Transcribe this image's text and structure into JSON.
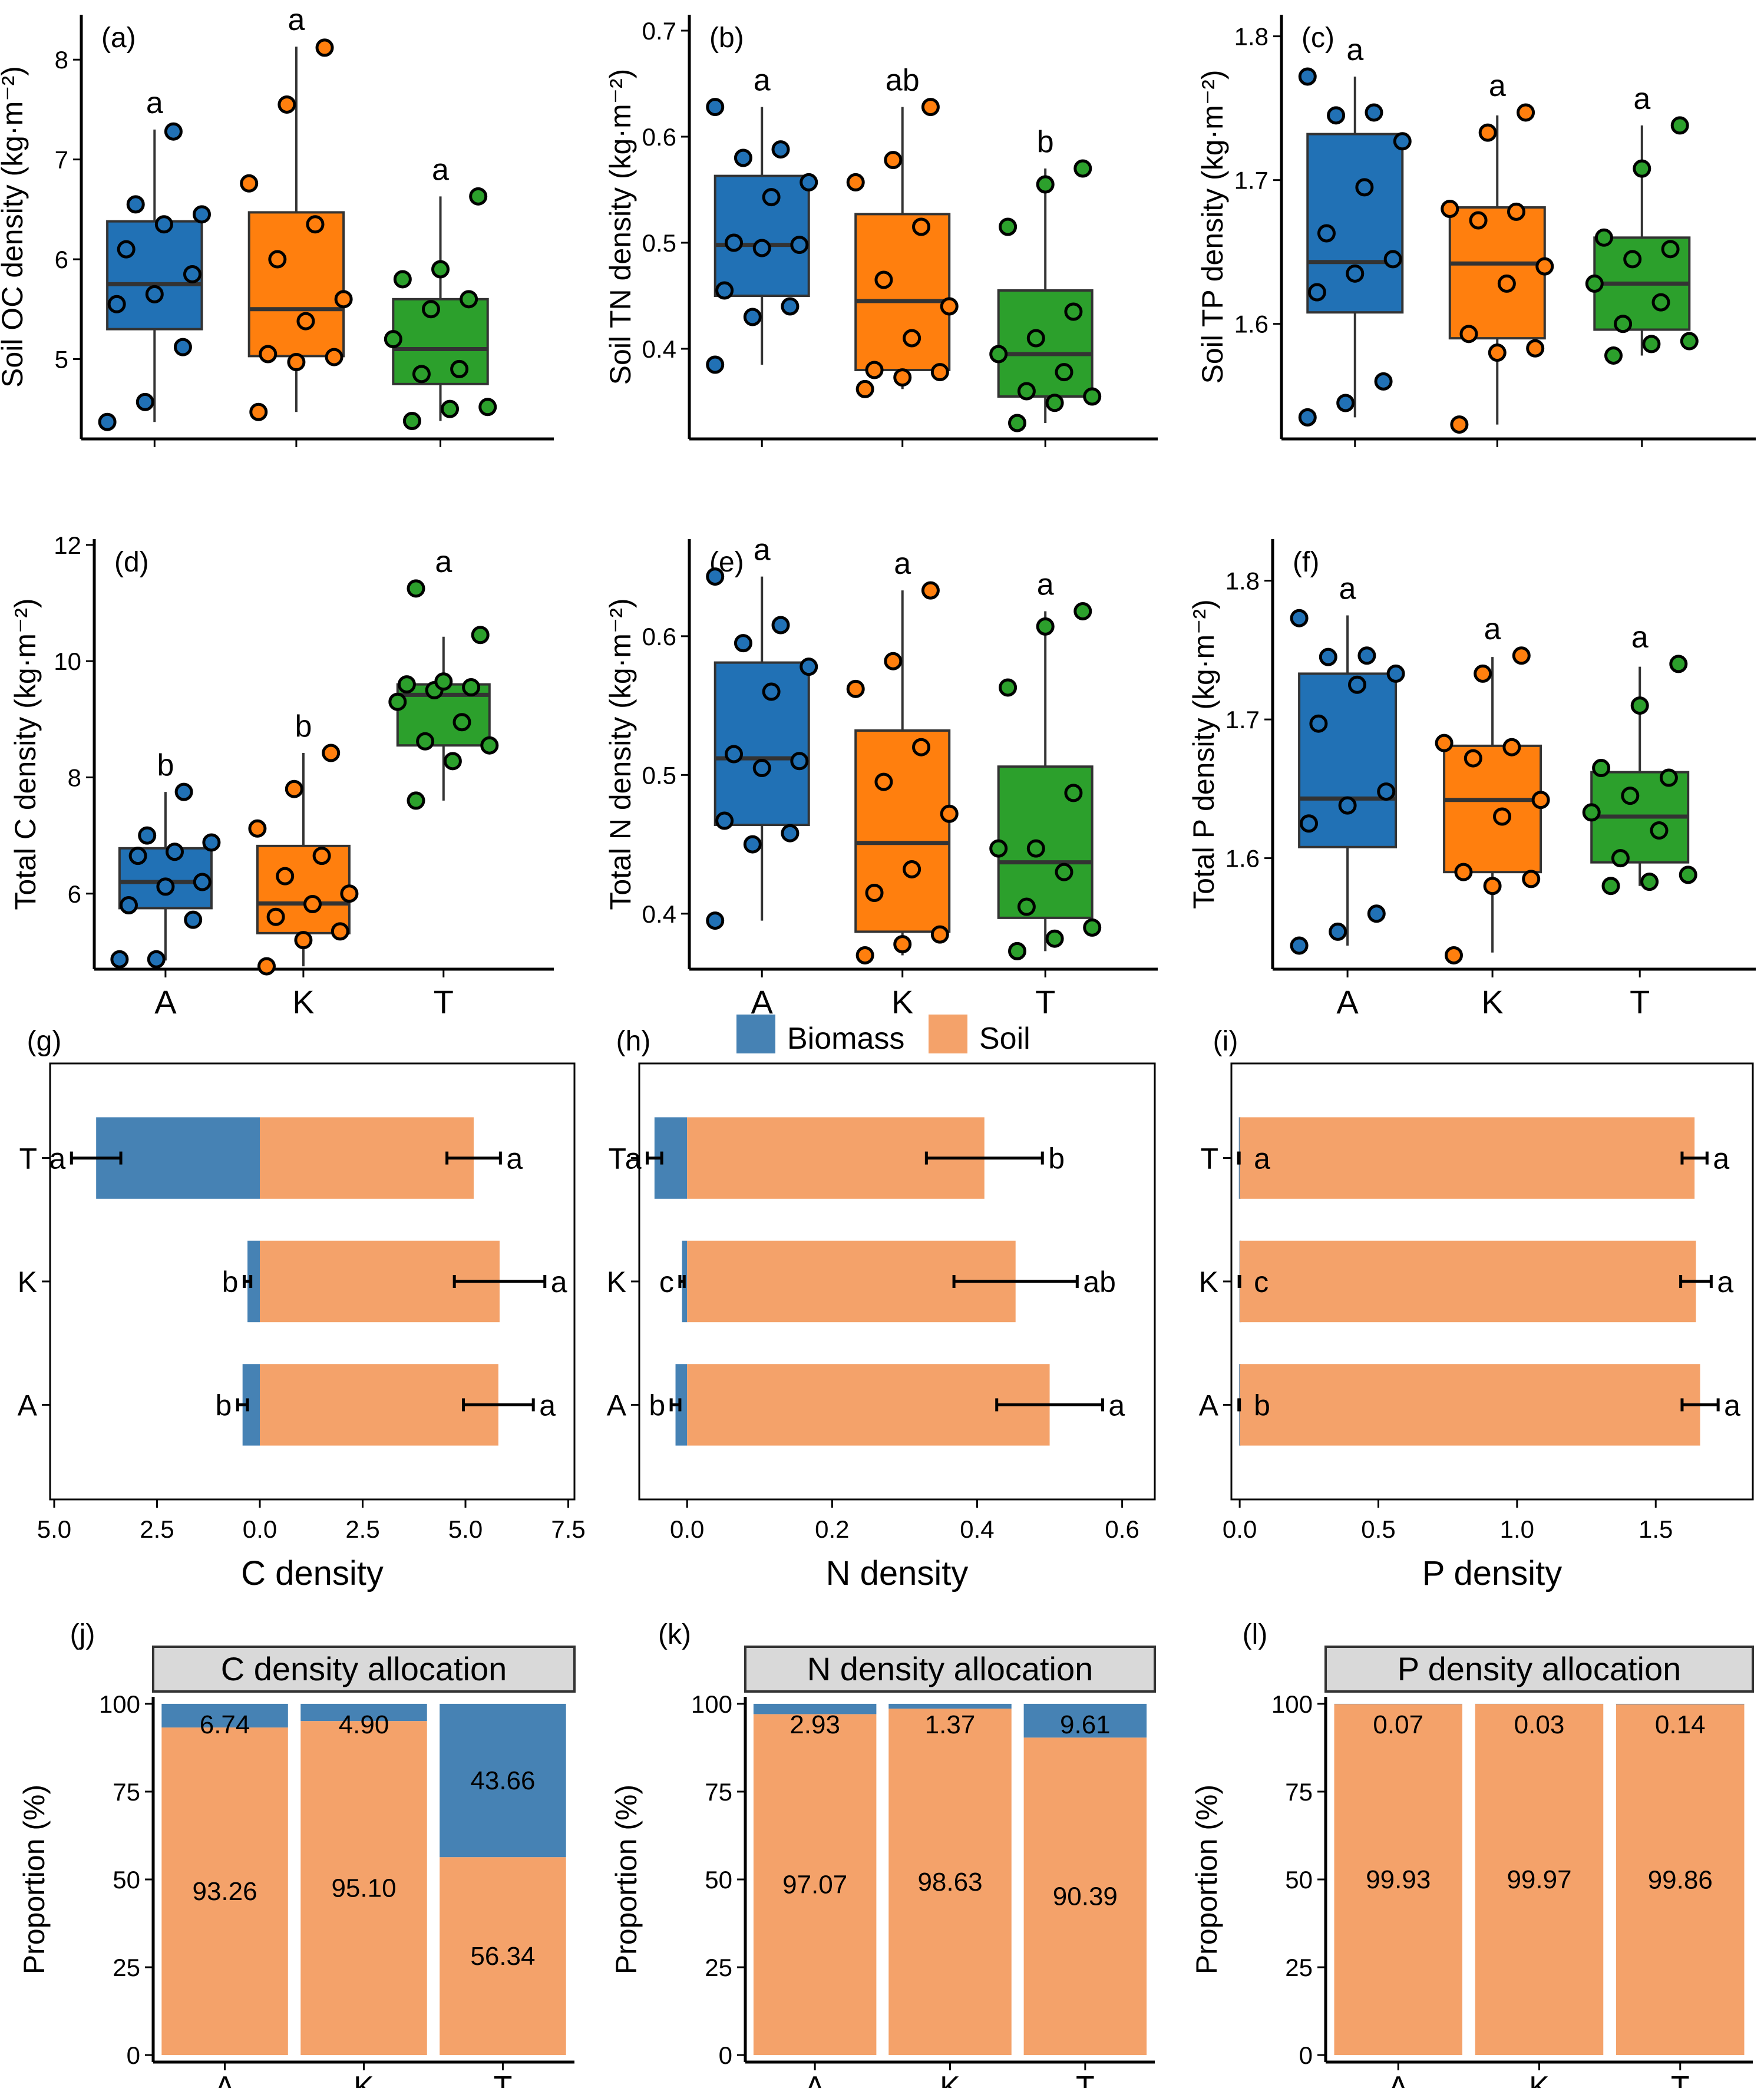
{
  "colors": {
    "A": "#2171B5",
    "K": "#FF7F0E",
    "T": "#2CA02C",
    "biomass": "#4682B4",
    "soil": "#F4A26A",
    "strip": "#D9D9D9"
  },
  "legend": {
    "biomass": "Biomass",
    "soil": "Soil"
  },
  "chart_data": [
    {
      "type": "box",
      "panel": "(a)",
      "ylabel": "Soil OC density (kg·m⁻²)",
      "ylim": [
        4.2,
        8.45
      ],
      "yticks": [
        5,
        6,
        7,
        8
      ],
      "xticklabels": [],
      "boxes": [
        {
          "group": "A",
          "q1": 5.3,
          "median": 5.75,
          "q3": 6.38,
          "low": 4.37,
          "high": 7.3,
          "letter": "a",
          "points": [
            4.37,
            4.57,
            5.12,
            5.55,
            5.65,
            5.85,
            6.1,
            6.35,
            6.45,
            6.55,
            7.28
          ]
        },
        {
          "group": "K",
          "q1": 5.03,
          "median": 5.5,
          "q3": 6.47,
          "low": 4.47,
          "high": 8.13,
          "letter": "a",
          "points": [
            4.47,
            4.97,
            5.02,
            5.05,
            5.38,
            5.6,
            6.0,
            6.35,
            6.76,
            7.55,
            8.12
          ]
        },
        {
          "group": "T",
          "q1": 4.75,
          "median": 5.1,
          "q3": 5.6,
          "low": 4.38,
          "high": 6.63,
          "letter": "a",
          "points": [
            4.38,
            4.5,
            4.52,
            4.85,
            4.9,
            5.2,
            5.5,
            5.6,
            5.8,
            5.9,
            6.63
          ]
        }
      ]
    },
    {
      "type": "box",
      "panel": "(b)",
      "ylabel": "Soil TN density (kg·m⁻²)",
      "ylim": [
        0.315,
        0.715
      ],
      "yticks": [
        0.4,
        0.5,
        0.6,
        0.7
      ],
      "xticklabels": [],
      "boxes": [
        {
          "group": "A",
          "q1": 0.45,
          "median": 0.498,
          "q3": 0.563,
          "low": 0.385,
          "high": 0.628,
          "letter": "a",
          "points": [
            0.385,
            0.43,
            0.44,
            0.455,
            0.495,
            0.498,
            0.5,
            0.543,
            0.557,
            0.58,
            0.588,
            0.628
          ]
        },
        {
          "group": "K",
          "q1": 0.38,
          "median": 0.445,
          "q3": 0.527,
          "low": 0.362,
          "high": 0.628,
          "letter": "ab",
          "points": [
            0.362,
            0.373,
            0.378,
            0.38,
            0.41,
            0.44,
            0.465,
            0.515,
            0.557,
            0.578,
            0.628
          ]
        },
        {
          "group": "T",
          "q1": 0.355,
          "median": 0.395,
          "q3": 0.455,
          "low": 0.33,
          "high": 0.57,
          "letter": "b",
          "points": [
            0.33,
            0.349,
            0.355,
            0.36,
            0.378,
            0.395,
            0.41,
            0.435,
            0.515,
            0.555,
            0.57
          ]
        }
      ]
    },
    {
      "type": "box",
      "panel": "(c)",
      "ylabel": "Soil TP density (kg·m⁻²)",
      "ylim": [
        1.52,
        1.815
      ],
      "yticks": [
        1.6,
        1.7,
        1.8
      ],
      "xticklabels": [],
      "boxes": [
        {
          "group": "A",
          "q1": 1.608,
          "median": 1.643,
          "q3": 1.732,
          "low": 1.535,
          "high": 1.772,
          "letter": "a",
          "points": [
            1.535,
            1.545,
            1.56,
            1.622,
            1.635,
            1.645,
            1.663,
            1.695,
            1.727,
            1.745,
            1.747,
            1.772
          ]
        },
        {
          "group": "K",
          "q1": 1.59,
          "median": 1.642,
          "q3": 1.681,
          "low": 1.53,
          "high": 1.745,
          "letter": "a",
          "points": [
            1.53,
            1.58,
            1.583,
            1.593,
            1.628,
            1.64,
            1.672,
            1.678,
            1.68,
            1.733,
            1.747
          ]
        },
        {
          "group": "T",
          "q1": 1.596,
          "median": 1.628,
          "q3": 1.66,
          "low": 1.578,
          "high": 1.738,
          "letter": "a",
          "points": [
            1.578,
            1.586,
            1.588,
            1.6,
            1.615,
            1.628,
            1.645,
            1.652,
            1.66,
            1.708,
            1.738
          ]
        }
      ]
    },
    {
      "type": "box",
      "panel": "(d)",
      "ylabel": "Total C density (kg·m⁻²)",
      "ylim": [
        4.7,
        12.1
      ],
      "yticks": [
        6,
        8,
        10,
        12
      ],
      "xticklabels": [
        "A",
        "K",
        "T"
      ],
      "boxes": [
        {
          "group": "A",
          "q1": 5.75,
          "median": 6.2,
          "q3": 6.78,
          "low": 4.85,
          "high": 7.75,
          "letter": "b",
          "points": [
            4.87,
            4.87,
            5.55,
            5.8,
            6.12,
            6.2,
            6.65,
            6.72,
            6.88,
            7.0,
            7.75
          ]
        },
        {
          "group": "K",
          "q1": 5.32,
          "median": 5.83,
          "q3": 6.82,
          "low": 4.75,
          "high": 8.42,
          "letter": "b",
          "points": [
            4.75,
            5.2,
            5.35,
            5.6,
            5.82,
            6.0,
            6.3,
            6.65,
            7.12,
            7.8,
            8.42
          ]
        },
        {
          "group": "T",
          "q1": 8.55,
          "median": 9.42,
          "q3": 9.6,
          "low": 7.6,
          "high": 10.42,
          "letter": "a",
          "points": [
            7.6,
            8.28,
            8.55,
            8.62,
            8.95,
            9.3,
            9.5,
            9.55,
            9.6,
            9.65,
            10.45,
            11.25
          ]
        }
      ]
    },
    {
      "type": "box",
      "panel": "(e)",
      "ylabel": "Total N density (kg·m⁻²)",
      "ylim": [
        0.36,
        0.67
      ],
      "yticks": [
        0.4,
        0.5,
        0.6
      ],
      "xticklabels": [
        "A",
        "K",
        "T"
      ],
      "boxes": [
        {
          "group": "A",
          "q1": 0.464,
          "median": 0.512,
          "q3": 0.581,
          "low": 0.395,
          "high": 0.643,
          "letter": "a",
          "points": [
            0.395,
            0.45,
            0.458,
            0.467,
            0.505,
            0.51,
            0.515,
            0.56,
            0.578,
            0.595,
            0.608,
            0.643
          ]
        },
        {
          "group": "K",
          "q1": 0.387,
          "median": 0.451,
          "q3": 0.532,
          "low": 0.37,
          "high": 0.633,
          "letter": "a",
          "points": [
            0.37,
            0.378,
            0.385,
            0.415,
            0.432,
            0.472,
            0.495,
            0.52,
            0.562,
            0.582,
            0.633
          ]
        },
        {
          "group": "T",
          "q1": 0.397,
          "median": 0.437,
          "q3": 0.506,
          "low": 0.373,
          "high": 0.618,
          "letter": "a",
          "points": [
            0.373,
            0.382,
            0.39,
            0.405,
            0.43,
            0.447,
            0.447,
            0.487,
            0.563,
            0.607,
            0.618
          ]
        }
      ]
    },
    {
      "type": "box",
      "panel": "(f)",
      "ylabel": "Total P density (kg·m⁻²)",
      "ylim": [
        1.52,
        1.83
      ],
      "yticks": [
        1.6,
        1.7,
        1.8
      ],
      "xticklabels": [
        "A",
        "K",
        "T"
      ],
      "boxes": [
        {
          "group": "A",
          "q1": 1.608,
          "median": 1.643,
          "q3": 1.733,
          "low": 1.537,
          "high": 1.775,
          "letter": "a",
          "points": [
            1.537,
            1.547,
            1.56,
            1.625,
            1.638,
            1.648,
            1.697,
            1.725,
            1.733,
            1.745,
            1.746,
            1.773
          ]
        },
        {
          "group": "K",
          "q1": 1.59,
          "median": 1.642,
          "q3": 1.681,
          "low": 1.532,
          "high": 1.745,
          "letter": "a",
          "points": [
            1.53,
            1.58,
            1.585,
            1.59,
            1.63,
            1.642,
            1.672,
            1.68,
            1.683,
            1.733,
            1.746
          ]
        },
        {
          "group": "T",
          "q1": 1.597,
          "median": 1.63,
          "q3": 1.662,
          "low": 1.58,
          "high": 1.738,
          "letter": "a",
          "points": [
            1.58,
            1.583,
            1.588,
            1.6,
            1.62,
            1.633,
            1.645,
            1.658,
            1.665,
            1.71,
            1.74
          ]
        }
      ]
    },
    {
      "type": "hbar",
      "panel": "(g)",
      "xlabel": "C density",
      "xlim": [
        -5.1,
        7.65
      ],
      "xticks": [
        -5,
        -2.5,
        0,
        2.5,
        5,
        7.5
      ],
      "xticklabels": [
        "5.0",
        "2.5",
        "0.0",
        "2.5",
        "5.0",
        "7.5"
      ],
      "categories": [
        "T",
        "K",
        "A"
      ],
      "biomass": [
        -3.98,
        -0.3,
        -0.42
      ],
      "biomass_err": [
        0.6,
        0.08,
        0.12
      ],
      "biomass_letters": [
        "a",
        "b",
        "b"
      ],
      "soil": [
        5.2,
        5.83,
        5.8
      ],
      "soil_err": [
        0.65,
        1.1,
        0.85
      ],
      "soil_letters": [
        "a",
        "a",
        "a"
      ]
    },
    {
      "type": "hbar",
      "panel": "(h)",
      "xlabel": "N density",
      "xlim": [
        -0.066,
        0.645
      ],
      "xticks": [
        0,
        0.2,
        0.4,
        0.6
      ],
      "xticklabels": [
        "0.0",
        "0.2",
        "0.4",
        "0.6"
      ],
      "categories": [
        "T",
        "K",
        "A"
      ],
      "biomass": [
        -0.045,
        -0.007,
        -0.016
      ],
      "biomass_err": [
        0.01,
        0.003,
        0.006
      ],
      "biomass_letters": [
        "a",
        "c",
        "b"
      ],
      "soil": [
        0.41,
        0.453,
        0.5
      ],
      "soil_err": [
        0.08,
        0.085,
        0.073
      ],
      "soil_letters": [
        "b",
        "ab",
        "a"
      ]
    },
    {
      "type": "hbar",
      "panel": "(i)",
      "xlabel": "P density",
      "xlim": [
        -0.03,
        1.85
      ],
      "xticks": [
        0,
        0.5,
        1.0,
        1.5
      ],
      "xticklabels": [
        "0.0",
        "0.5",
        "1.0",
        "1.5"
      ],
      "categories": [
        "T",
        "K",
        "A"
      ],
      "biomass": [
        -0.003,
        -0.001,
        -0.002
      ],
      "biomass_err": [
        0.001,
        0.001,
        0.001
      ],
      "biomass_letters": [
        "a",
        "c",
        "b"
      ],
      "soil": [
        1.64,
        1.645,
        1.66
      ],
      "soil_err": [
        0.045,
        0.055,
        0.065
      ],
      "soil_letters": [
        "a",
        "a",
        "a"
      ]
    },
    {
      "type": "stacked_bar",
      "panel": "(j)",
      "strip": "C density allocation",
      "ylabel": "Proportion (%)",
      "ylim": [
        -2,
        102
      ],
      "yticks": [
        0,
        25,
        50,
        75,
        100
      ],
      "categories": [
        "A",
        "K",
        "T"
      ],
      "soil": [
        93.26,
        95.1,
        56.34
      ],
      "biomass": [
        6.74,
        4.9,
        43.66
      ],
      "soil_labels": [
        "93.26",
        "95.10",
        "56.34"
      ],
      "biomass_labels": [
        "6.74",
        "4.90",
        "43.66"
      ]
    },
    {
      "type": "stacked_bar",
      "panel": "(k)",
      "strip": "N density allocation",
      "ylabel": "Proportion (%)",
      "ylim": [
        -2,
        102
      ],
      "yticks": [
        0,
        25,
        50,
        75,
        100
      ],
      "categories": [
        "A",
        "K",
        "T"
      ],
      "soil": [
        97.07,
        98.63,
        90.39
      ],
      "biomass": [
        2.93,
        1.37,
        9.61
      ],
      "soil_labels": [
        "97.07",
        "98.63",
        "90.39"
      ],
      "biomass_labels": [
        "2.93",
        "1.37",
        "9.61"
      ]
    },
    {
      "type": "stacked_bar",
      "panel": "(l)",
      "strip": "P density allocation",
      "ylabel": "Proportion (%)",
      "ylim": [
        -2,
        102
      ],
      "yticks": [
        0,
        25,
        50,
        75,
        100
      ],
      "categories": [
        "A",
        "K",
        "T"
      ],
      "soil": [
        99.93,
        99.97,
        99.86
      ],
      "biomass": [
        0.07,
        0.03,
        0.14
      ],
      "soil_labels": [
        "99.93",
        "99.97",
        "99.86"
      ],
      "biomass_labels": [
        "0.07",
        "0.03",
        "0.14"
      ]
    }
  ]
}
